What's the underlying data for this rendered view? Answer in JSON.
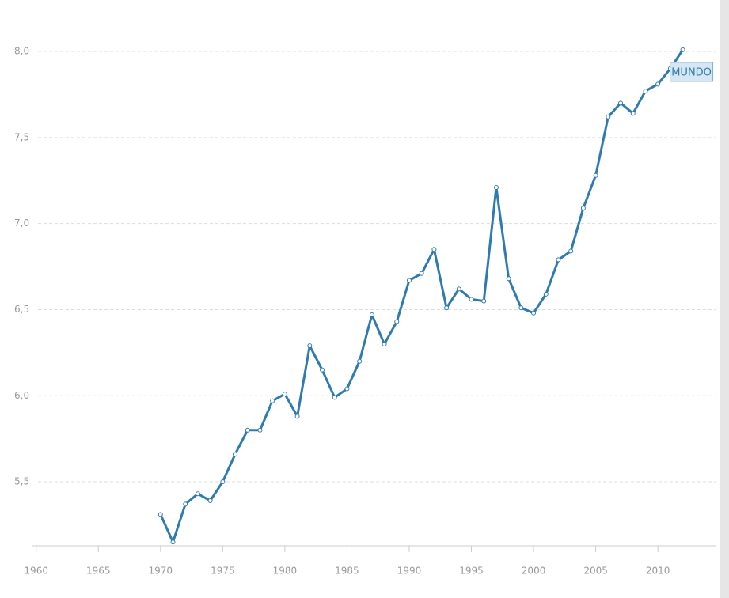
{
  "chart_data": {
    "type": "line",
    "x": [
      1970,
      1971,
      1972,
      1973,
      1974,
      1975,
      1976,
      1977,
      1978,
      1979,
      1980,
      1981,
      1982,
      1983,
      1984,
      1985,
      1986,
      1987,
      1988,
      1989,
      1990,
      1991,
      1992,
      1993,
      1994,
      1995,
      1996,
      1997,
      1998,
      1999,
      2000,
      2001,
      2002,
      2003,
      2004,
      2005,
      2006,
      2007,
      2008,
      2009,
      2010,
      2011,
      2012
    ],
    "series": [
      {
        "name": "MUNDO",
        "color": "#2f7bb0",
        "values": [
          5.31,
          5.15,
          5.37,
          5.43,
          5.39,
          5.5,
          5.66,
          5.8,
          5.8,
          5.97,
          6.01,
          5.88,
          6.29,
          6.15,
          5.99,
          6.04,
          6.2,
          6.47,
          6.3,
          6.43,
          6.67,
          6.71,
          6.85,
          6.51,
          6.62,
          6.56,
          6.55,
          7.21,
          6.68,
          6.51,
          6.48,
          6.59,
          6.79,
          6.84,
          7.09,
          7.28,
          7.62,
          7.7,
          7.64,
          7.77,
          7.81,
          7.9,
          8.01
        ]
      }
    ],
    "xlim": [
      1959,
      2014.7
    ],
    "xticks": [
      1960,
      1965,
      1970,
      1975,
      1980,
      1985,
      1990,
      1995,
      2000,
      2005,
      2010
    ],
    "ylim": [
      5.128,
      8.207
    ],
    "yticks": [
      {
        "value": 5.5,
        "label": "5,5"
      },
      {
        "value": 6,
        "label": "6,0"
      },
      {
        "value": 6.5,
        "label": "6,5"
      },
      {
        "value": 7,
        "label": "7,0"
      },
      {
        "value": 7.5,
        "label": "7,5"
      },
      {
        "value": 8,
        "label": "8,0"
      }
    ],
    "grid": true
  }
}
